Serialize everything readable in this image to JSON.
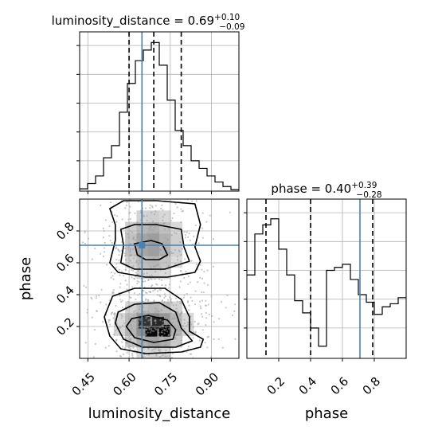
{
  "figure": {
    "type": "corner_plot",
    "parameters": [
      "luminosity_distance",
      "phase"
    ]
  },
  "titles": {
    "luminosity_distance": {
      "prefix": "luminosity_distance = 0.69",
      "plus": "+0.10",
      "minus": "−0.09"
    },
    "phase": {
      "prefix": "phase = 0.40",
      "plus": "+0.39",
      "minus": "−0.28"
    }
  },
  "axis_labels": {
    "x_left": "luminosity_distance",
    "x_right": "phase",
    "y_left": "phase"
  },
  "colors": {
    "truth": "#4682b4",
    "hist": "#000000",
    "contour": "#000000",
    "grid": "#b0b0b0",
    "points": "#9a9a9a"
  },
  "chart_data": [
    {
      "id": "hist_luminosity_distance",
      "type": "histogram",
      "title": "luminosity_distance = 0.69 (+0.10 / −0.09)",
      "xlim": [
        0.42,
        1.0
      ],
      "ylim": [
        0,
        1.05
      ],
      "x_ticks": [
        0.45,
        0.6,
        0.75,
        0.9
      ],
      "bin_edges": [
        0.42,
        0.449,
        0.478,
        0.507,
        0.536,
        0.565,
        0.594,
        0.623,
        0.652,
        0.681,
        0.71,
        0.739,
        0.768,
        0.797,
        0.826,
        0.855,
        0.884,
        0.913,
        0.942,
        0.971,
        1.0
      ],
      "counts": [
        0.015,
        0.05,
        0.1,
        0.22,
        0.3,
        0.52,
        0.71,
        0.86,
        0.93,
        0.98,
        0.83,
        0.6,
        0.4,
        0.3,
        0.2,
        0.15,
        0.1,
        0.06,
        0.03,
        0.01
      ],
      "quantiles": [
        0.6,
        0.69,
        0.79
      ],
      "truth": 0.647
    },
    {
      "id": "hist2d_luminosity_distance_phase",
      "type": "scatter_density",
      "xlim": [
        0.42,
        1.0
      ],
      "ylim": [
        0.0,
        1.0
      ],
      "x_ticks": [
        0.45,
        0.6,
        0.75,
        0.9
      ],
      "y_ticks": [
        0.2,
        0.4,
        0.6,
        0.8
      ],
      "truth": {
        "x": 0.647,
        "y": 0.71
      },
      "density_blobs": [
        {
          "x": 0.68,
          "y": 0.72,
          "sx": 0.07,
          "sy": 0.13,
          "w": 0.42
        },
        {
          "x": 0.69,
          "y": 0.2,
          "sx": 0.075,
          "sy": 0.1,
          "w": 0.58
        }
      ],
      "darkest_cells": [
        {
          "x": 0.68,
          "y": 0.175,
          "v": 0.95
        },
        {
          "x": 0.73,
          "y": 0.175,
          "v": 1.0
        },
        {
          "x": 0.655,
          "y": 0.225,
          "v": 0.72
        },
        {
          "x": 0.705,
          "y": 0.225,
          "v": 0.78
        }
      ],
      "contours": [
        {
          "level": "outer",
          "points": [
            [
              0.53,
              0.94
            ],
            [
              0.55,
              0.84
            ],
            [
              0.55,
              0.74
            ],
            [
              0.53,
              0.6
            ],
            [
              0.56,
              0.54
            ],
            [
              0.66,
              0.51
            ],
            [
              0.74,
              0.51
            ],
            [
              0.84,
              0.54
            ],
            [
              0.86,
              0.61
            ],
            [
              0.84,
              0.7
            ],
            [
              0.86,
              0.84
            ],
            [
              0.84,
              0.97
            ],
            [
              0.7,
              0.99
            ],
            [
              0.58,
              0.99
            ]
          ]
        },
        {
          "level": "mid",
          "points": [
            [
              0.57,
              0.81
            ],
            [
              0.58,
              0.71
            ],
            [
              0.57,
              0.6
            ],
            [
              0.62,
              0.56
            ],
            [
              0.73,
              0.56
            ],
            [
              0.82,
              0.61
            ],
            [
              0.8,
              0.7
            ],
            [
              0.79,
              0.81
            ],
            [
              0.7,
              0.84
            ],
            [
              0.62,
              0.84
            ]
          ]
        },
        {
          "level": "inner",
          "points": [
            [
              0.62,
              0.72
            ],
            [
              0.63,
              0.65
            ],
            [
              0.66,
              0.62
            ],
            [
              0.71,
              0.62
            ],
            [
              0.74,
              0.65
            ],
            [
              0.72,
              0.72
            ],
            [
              0.68,
              0.74
            ]
          ]
        },
        {
          "level": "outer",
          "points": [
            [
              0.51,
              0.26
            ],
            [
              0.53,
              0.14
            ],
            [
              0.57,
              0.06
            ],
            [
              0.66,
              0.03
            ],
            [
              0.79,
              0.04
            ],
            [
              0.86,
              0.07
            ],
            [
              0.87,
              0.12
            ],
            [
              0.82,
              0.17
            ],
            [
              0.82,
              0.26
            ],
            [
              0.79,
              0.37
            ],
            [
              0.73,
              0.44
            ],
            [
              0.62,
              0.44
            ],
            [
              0.54,
              0.39
            ]
          ]
        },
        {
          "level": "mid",
          "points": [
            [
              0.55,
              0.22
            ],
            [
              0.58,
              0.12
            ],
            [
              0.65,
              0.07
            ],
            [
              0.77,
              0.07
            ],
            [
              0.83,
              0.11
            ],
            [
              0.79,
              0.19
            ],
            [
              0.77,
              0.29
            ],
            [
              0.71,
              0.35
            ],
            [
              0.62,
              0.34
            ],
            [
              0.56,
              0.29
            ]
          ]
        },
        {
          "level": "inner",
          "points": [
            [
              0.59,
              0.2
            ],
            [
              0.62,
              0.13
            ],
            [
              0.69,
              0.1
            ],
            [
              0.76,
              0.12
            ],
            [
              0.77,
              0.18
            ],
            [
              0.74,
              0.24
            ],
            [
              0.67,
              0.27
            ],
            [
              0.61,
              0.25
            ]
          ]
        }
      ]
    },
    {
      "id": "hist_phase",
      "type": "histogram",
      "title": "phase = 0.40 (+0.39 / −0.28)",
      "xlim": [
        0.0,
        1.0
      ],
      "ylim": [
        0,
        1.05
      ],
      "x_ticks": [
        0.2,
        0.4,
        0.6,
        0.8
      ],
      "bin_edges": [
        0.0,
        0.05,
        0.1,
        0.15,
        0.2,
        0.25,
        0.3,
        0.35,
        0.4,
        0.45,
        0.5,
        0.55,
        0.6,
        0.65,
        0.7,
        0.75,
        0.8,
        0.85,
        0.9,
        0.95,
        1.0
      ],
      "counts": [
        0.55,
        0.82,
        0.88,
        0.92,
        0.72,
        0.55,
        0.38,
        0.3,
        0.2,
        0.08,
        0.58,
        0.6,
        0.62,
        0.52,
        0.42,
        0.37,
        0.29,
        0.34,
        0.36,
        0.4
      ],
      "quantiles": [
        0.12,
        0.4,
        0.79
      ],
      "truth": 0.71
    }
  ]
}
